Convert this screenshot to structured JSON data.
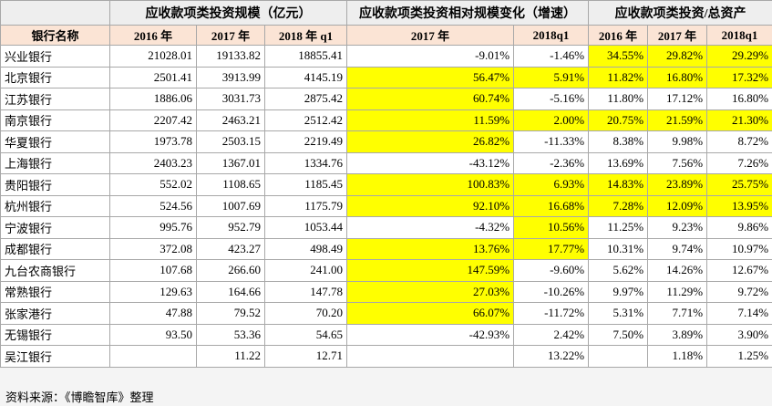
{
  "table": {
    "group_headers": [
      "应收款项类投资规模（亿元）",
      "应收款项类投资相对规模变化（增速）",
      "应收款项类投资/总资产"
    ],
    "columns": [
      "银行名称",
      "2016 年",
      "2017 年",
      "2018 年 q1",
      "2017 年",
      "2018q1",
      "2016 年",
      "2017 年",
      "2018q1"
    ],
    "rows": [
      [
        "兴业银行",
        "21028.01",
        "19133.82",
        "18855.41",
        "-9.01%",
        "-1.46%",
        "34.55%",
        "29.82%",
        "29.29%"
      ],
      [
        "北京银行",
        "2501.41",
        "3913.99",
        "4145.19",
        "56.47%",
        "5.91%",
        "11.82%",
        "16.80%",
        "17.32%"
      ],
      [
        "江苏银行",
        "1886.06",
        "3031.73",
        "2875.42",
        "60.74%",
        "-5.16%",
        "11.80%",
        "17.12%",
        "16.80%"
      ],
      [
        "南京银行",
        "2207.42",
        "2463.21",
        "2512.42",
        "11.59%",
        "2.00%",
        "20.75%",
        "21.59%",
        "21.30%"
      ],
      [
        "华夏银行",
        "1973.78",
        "2503.15",
        "2219.49",
        "26.82%",
        "-11.33%",
        "8.38%",
        "9.98%",
        "8.72%"
      ],
      [
        "上海银行",
        "2403.23",
        "1367.01",
        "1334.76",
        "-43.12%",
        "-2.36%",
        "13.69%",
        "7.56%",
        "7.26%"
      ],
      [
        "贵阳银行",
        "552.02",
        "1108.65",
        "1185.45",
        "100.83%",
        "6.93%",
        "14.83%",
        "23.89%",
        "25.75%"
      ],
      [
        "杭州银行",
        "524.56",
        "1007.69",
        "1175.79",
        "92.10%",
        "16.68%",
        "7.28%",
        "12.09%",
        "13.95%"
      ],
      [
        "宁波银行",
        "995.76",
        "952.79",
        "1053.44",
        "-4.32%",
        "10.56%",
        "11.25%",
        "9.23%",
        "9.86%"
      ],
      [
        "成都银行",
        "372.08",
        "423.27",
        "498.49",
        "13.76%",
        "17.77%",
        "10.31%",
        "9.74%",
        "10.97%"
      ],
      [
        "九台农商银行",
        "107.68",
        "266.60",
        "241.00",
        "147.59%",
        "-9.60%",
        "5.62%",
        "14.26%",
        "12.67%"
      ],
      [
        "常熟银行",
        "129.63",
        "164.66",
        "147.78",
        "27.03%",
        "-10.26%",
        "9.97%",
        "11.29%",
        "9.72%"
      ],
      [
        "张家港行",
        "47.88",
        "79.52",
        "70.20",
        "66.07%",
        "-11.72%",
        "5.31%",
        "7.71%",
        "7.14%"
      ],
      [
        "无锡银行",
        "93.50",
        "53.36",
        "54.65",
        "-42.93%",
        "2.42%",
        "7.50%",
        "3.89%",
        "3.90%"
      ],
      [
        "吴江银行",
        null,
        "11.22",
        "12.71",
        null,
        "13.22%",
        null,
        "1.18%",
        "1.25%"
      ]
    ]
  },
  "footer": "资料来源：《博瞻智库》整理"
}
